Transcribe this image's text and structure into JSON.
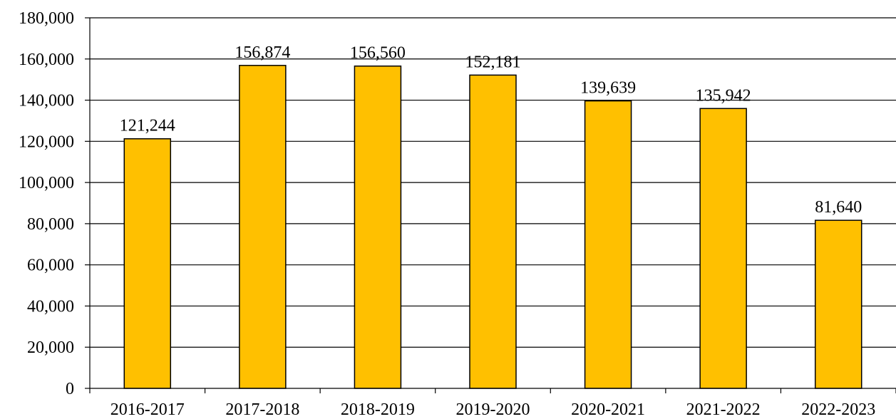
{
  "chart_data": {
    "type": "bar",
    "categories": [
      "2016-2017",
      "2017-2018",
      "2018-2019",
      "2019-2020",
      "2020-2021",
      "2021-2022",
      "2022-2023"
    ],
    "values": [
      121244,
      156874,
      156560,
      152181,
      139639,
      135942,
      81640
    ],
    "data_labels": [
      "121,244",
      "156,874",
      "156,560",
      "152,181",
      "139,639",
      "135,942",
      "81,640"
    ],
    "title": "",
    "xlabel": "",
    "ylabel": "",
    "ylim": [
      0,
      180000
    ],
    "yticks": [
      0,
      20000,
      40000,
      60000,
      80000,
      100000,
      120000,
      140000,
      160000,
      180000
    ],
    "ytick_labels": [
      "0",
      "20,000",
      "40,000",
      "60,000",
      "80,000",
      "100,000",
      "120,000",
      "140,000",
      "160,000",
      "180,000"
    ],
    "grid": true,
    "legend": false,
    "colors": {
      "bar_fill": "#FFC000",
      "bar_stroke": "#000000"
    }
  }
}
